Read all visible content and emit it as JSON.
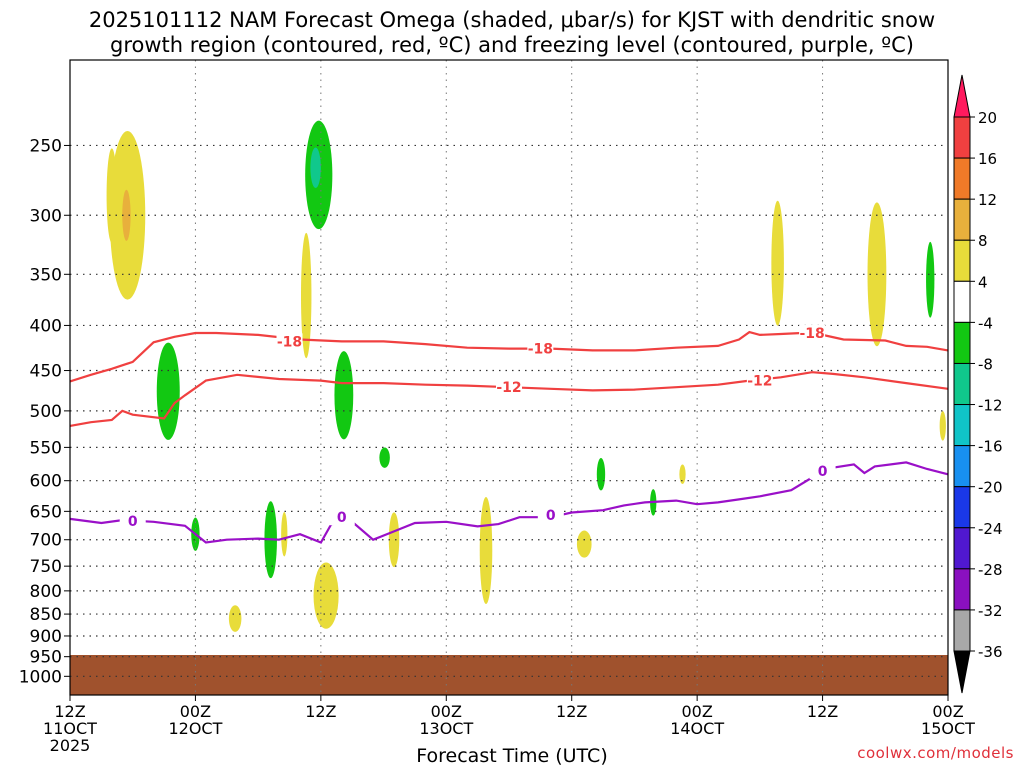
{
  "title_line1": "2025101112 NAM Forecast Omega (shaded, μbar/s) for KJST with dendritic snow",
  "title_line2": "growth region (contoured, red, ºC) and freezing level (contoured, purple, ºC)",
  "credit": "coolwx.com/models",
  "chart_data": {
    "type": "contour",
    "title": "2025101112 NAM Forecast Omega (shaded, μbar/s) for KJST with dendritic snow growth region (contoured, red, ºC) and freezing level (contoured, purple, ºC)",
    "xlabel": "Forecast Time (UTC)",
    "ylabel": "",
    "x_range_hours": [
      0,
      84
    ],
    "y_range_hPa": [
      1050,
      200
    ],
    "y_scale": "log",
    "y_ticks": [
      250,
      300,
      350,
      400,
      450,
      500,
      550,
      600,
      650,
      700,
      750,
      800,
      850,
      900,
      950,
      1000
    ],
    "x_ticks": [
      {
        "hour": 0,
        "line1": "12Z",
        "line2": "11OCT",
        "line3": "2025"
      },
      {
        "hour": 12,
        "line1": "00Z",
        "line2": "12OCT",
        "line3": ""
      },
      {
        "hour": 24,
        "line1": "12Z",
        "line2": "",
        "line3": ""
      },
      {
        "hour": 36,
        "line1": "00Z",
        "line2": "13OCT",
        "line3": ""
      },
      {
        "hour": 48,
        "line1": "12Z",
        "line2": "",
        "line3": ""
      },
      {
        "hour": 60,
        "line1": "00Z",
        "line2": "14OCT",
        "line3": ""
      },
      {
        "hour": 72,
        "line1": "12Z",
        "line2": "",
        "line3": ""
      },
      {
        "hour": 84,
        "line1": "00Z",
        "line2": "15OCT",
        "line3": ""
      }
    ],
    "grid": true,
    "colorbar": {
      "labels": [
        "20",
        "16",
        "12",
        "8",
        "4",
        "-4",
        "-8",
        "-12",
        "-16",
        "-20",
        "-24",
        "-28",
        "-32",
        "-36"
      ],
      "colors": [
        "#ff1a5e",
        "#f04040",
        "#f07a28",
        "#e8b03c",
        "#e8dc3a",
        "#ffffff",
        "#12c812",
        "#10c88c",
        "#10c4c8",
        "#1890f0",
        "#1a38e8",
        "#5018d0",
        "#8a10c0",
        "#a8a8a8",
        "#000000"
      ]
    },
    "contour_labels": {
      "dgz_minus18": "-18",
      "dgz_minus12": "-12",
      "freezing": "0"
    },
    "series": [
      {
        "name": "-18",
        "color": "#f04040",
        "points": [
          [
            0,
            463
          ],
          [
            2,
            455
          ],
          [
            4,
            448
          ],
          [
            6,
            440
          ],
          [
            8,
            418
          ],
          [
            10,
            412
          ],
          [
            12,
            408
          ],
          [
            14,
            408
          ],
          [
            18,
            410
          ],
          [
            22,
            415
          ],
          [
            26,
            417
          ],
          [
            30,
            417
          ],
          [
            34,
            420
          ],
          [
            38,
            424
          ],
          [
            42,
            425
          ],
          [
            46,
            425
          ],
          [
            50,
            427
          ],
          [
            54,
            427
          ],
          [
            58,
            424
          ],
          [
            62,
            422
          ],
          [
            64,
            415
          ],
          [
            65,
            407
          ],
          [
            66,
            410
          ],
          [
            68,
            409
          ],
          [
            70,
            408
          ],
          [
            72,
            410
          ],
          [
            74,
            415
          ],
          [
            78,
            416
          ],
          [
            80,
            422
          ],
          [
            82,
            423
          ],
          [
            84,
            427
          ]
        ]
      },
      {
        "name": "-12",
        "color": "#f04040",
        "points": [
          [
            0,
            520
          ],
          [
            2,
            515
          ],
          [
            4,
            512
          ],
          [
            5,
            500
          ],
          [
            6,
            505
          ],
          [
            9,
            510
          ],
          [
            10,
            490
          ],
          [
            11,
            480
          ],
          [
            13,
            462
          ],
          [
            16,
            455
          ],
          [
            20,
            460
          ],
          [
            24,
            462
          ],
          [
            26,
            465
          ],
          [
            30,
            465
          ],
          [
            34,
            467
          ],
          [
            38,
            468
          ],
          [
            42,
            470
          ],
          [
            46,
            472
          ],
          [
            50,
            474
          ],
          [
            54,
            473
          ],
          [
            58,
            470
          ],
          [
            62,
            467
          ],
          [
            65,
            462
          ],
          [
            68,
            458
          ],
          [
            71,
            452
          ],
          [
            73,
            454
          ],
          [
            76,
            458
          ],
          [
            80,
            465
          ],
          [
            84,
            472
          ]
        ]
      },
      {
        "name": "0",
        "color": "#9a10c8",
        "points": [
          [
            0,
            663
          ],
          [
            3,
            670
          ],
          [
            5,
            665
          ],
          [
            8,
            668
          ],
          [
            11,
            675
          ],
          [
            13,
            705
          ],
          [
            15,
            700
          ],
          [
            18,
            698
          ],
          [
            20,
            700
          ],
          [
            22,
            690
          ],
          [
            24,
            705
          ],
          [
            25,
            672
          ],
          [
            27,
            668
          ],
          [
            29,
            700
          ],
          [
            31,
            685
          ],
          [
            33,
            670
          ],
          [
            36,
            668
          ],
          [
            39,
            676
          ],
          [
            41,
            672
          ],
          [
            43,
            660
          ],
          [
            46,
            660
          ],
          [
            48,
            652
          ],
          [
            51,
            648
          ],
          [
            53,
            640
          ],
          [
            55,
            635
          ],
          [
            58,
            632
          ],
          [
            60,
            638
          ],
          [
            62,
            635
          ],
          [
            64,
            630
          ],
          [
            66,
            625
          ],
          [
            69,
            615
          ],
          [
            71,
            595
          ],
          [
            73,
            580
          ],
          [
            75,
            575
          ],
          [
            76,
            588
          ],
          [
            77,
            578
          ],
          [
            80,
            572
          ],
          [
            82,
            582
          ],
          [
            84,
            590
          ]
        ]
      }
    ],
    "omega_shaded_regions": [
      {
        "value": 8,
        "x": 5.5,
        "p": 300,
        "dx": 1.7,
        "dp": 65,
        "color": "#e8dc3a"
      },
      {
        "value": 12,
        "x": 5.4,
        "p": 300,
        "dx": 0.4,
        "dp": 20,
        "color": "#e8b03c"
      },
      {
        "value": 4,
        "x": 4.0,
        "p": 285,
        "dx": 0.5,
        "dp": 35,
        "color": "#e8dc3a"
      },
      {
        "value": -8,
        "x": 9.4,
        "p": 475,
        "dx": 1.1,
        "dp": 60,
        "color": "#12c812"
      },
      {
        "value": -8,
        "x": 23.8,
        "p": 270,
        "dx": 1.3,
        "dp": 38,
        "color": "#12c812"
      },
      {
        "value": -12,
        "x": 23.5,
        "p": 265,
        "dx": 0.5,
        "dp": 14,
        "color": "#10c88c"
      },
      {
        "value": 4,
        "x": 22.6,
        "p": 370,
        "dx": 0.5,
        "dp": 60,
        "color": "#e8dc3a"
      },
      {
        "value": -8,
        "x": 26.2,
        "p": 480,
        "dx": 0.9,
        "dp": 55,
        "color": "#12c812"
      },
      {
        "value": -8,
        "x": 12.0,
        "p": 690,
        "dx": 0.4,
        "dp": 30,
        "color": "#12c812"
      },
      {
        "value": -8,
        "x": 19.2,
        "p": 700,
        "dx": 0.6,
        "dp": 70,
        "color": "#12c812"
      },
      {
        "value": 4,
        "x": 20.5,
        "p": 690,
        "dx": 0.3,
        "dp": 40,
        "color": "#e8dc3a"
      },
      {
        "value": 4,
        "x": 24.5,
        "p": 810,
        "dx": 1.2,
        "dp": 70,
        "color": "#e8dc3a"
      },
      {
        "value": 4,
        "x": 15.8,
        "p": 860,
        "dx": 0.6,
        "dp": 30,
        "color": "#e8dc3a"
      },
      {
        "value": -8,
        "x": 30.1,
        "p": 565,
        "dx": 0.5,
        "dp": 15,
        "color": "#12c812"
      },
      {
        "value": 4,
        "x": 31.0,
        "p": 700,
        "dx": 0.5,
        "dp": 50,
        "color": "#e8dc3a"
      },
      {
        "value": 4,
        "x": 39.8,
        "p": 720,
        "dx": 0.6,
        "dp": 100,
        "color": "#e8dc3a"
      },
      {
        "value": -8,
        "x": 50.8,
        "p": 590,
        "dx": 0.4,
        "dp": 25,
        "color": "#12c812"
      },
      {
        "value": 4,
        "x": 49.2,
        "p": 708,
        "dx": 0.7,
        "dp": 25,
        "color": "#e8dc3a"
      },
      {
        "value": -8,
        "x": 55.8,
        "p": 635,
        "dx": 0.3,
        "dp": 22,
        "color": "#12c812"
      },
      {
        "value": 4,
        "x": 58.6,
        "p": 590,
        "dx": 0.3,
        "dp": 15,
        "color": "#e8dc3a"
      },
      {
        "value": 4,
        "x": 67.7,
        "p": 340,
        "dx": 0.6,
        "dp": 55,
        "color": "#e8dc3a"
      },
      {
        "value": 4,
        "x": 77.2,
        "p": 350,
        "dx": 0.9,
        "dp": 65,
        "color": "#e8dc3a"
      },
      {
        "value": -8,
        "x": 82.3,
        "p": 355,
        "dx": 0.4,
        "dp": 35,
        "color": "#12c812"
      },
      {
        "value": 4,
        "x": 83.5,
        "p": 520,
        "dx": 0.3,
        "dp": 20,
        "color": "#e8dc3a"
      }
    ]
  }
}
